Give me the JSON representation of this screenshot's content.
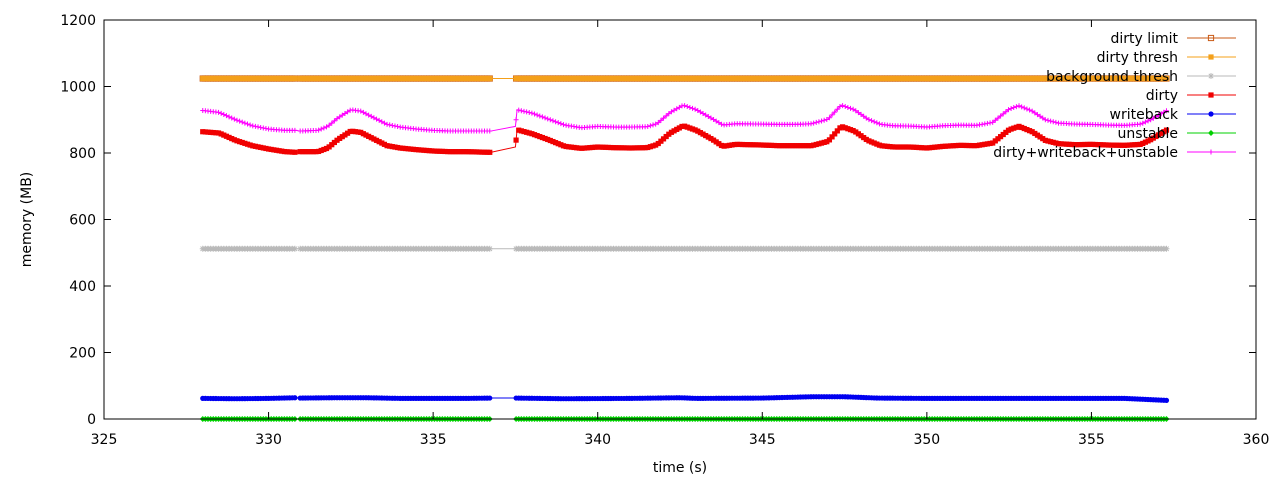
{
  "chart_data": {
    "type": "line",
    "title": "",
    "xlabel": "time (s)",
    "ylabel": "memory (MB)",
    "xlim": [
      325,
      360
    ],
    "ylim": [
      0,
      1200
    ],
    "xticks": [
      325,
      330,
      335,
      340,
      345,
      350,
      355,
      360
    ],
    "yticks": [
      0,
      200,
      400,
      600,
      800,
      1000,
      1200
    ],
    "grid": false,
    "legend_position": "top-right",
    "segments": [
      [
        328.0,
        330.85
      ],
      [
        330.95,
        336.75
      ],
      [
        337.5,
        357.3
      ]
    ],
    "series": [
      {
        "name": "dirty limit",
        "color": "#c85a14",
        "marker": "open-square",
        "points": [
          [
            328.0,
            1024
          ],
          [
            357.3,
            1024
          ]
        ]
      },
      {
        "name": "dirty thresh",
        "color": "#f4a01a",
        "marker": "square",
        "points": [
          [
            328.0,
            1024
          ],
          [
            357.3,
            1024
          ]
        ]
      },
      {
        "name": "background thresh",
        "color": "#b9b9b9",
        "marker": "star",
        "points": [
          [
            328.0,
            512
          ],
          [
            357.3,
            512
          ]
        ]
      },
      {
        "name": "dirty",
        "color": "#f00000",
        "marker": "filled-square",
        "points": [
          [
            328.0,
            864
          ],
          [
            328.5,
            860
          ],
          [
            329.0,
            838
          ],
          [
            329.5,
            822
          ],
          [
            330.0,
            812
          ],
          [
            330.5,
            804
          ],
          [
            330.85,
            802
          ],
          [
            330.95,
            804
          ],
          [
            331.5,
            804
          ],
          [
            331.8,
            815
          ],
          [
            332.1,
            840
          ],
          [
            332.5,
            866
          ],
          [
            332.8,
            862
          ],
          [
            333.2,
            842
          ],
          [
            333.6,
            822
          ],
          [
            334.0,
            815
          ],
          [
            334.5,
            810
          ],
          [
            335.0,
            806
          ],
          [
            335.5,
            804
          ],
          [
            336.0,
            804
          ],
          [
            336.75,
            802
          ],
          [
            337.5,
            818
          ],
          [
            337.55,
            870
          ],
          [
            338.0,
            858
          ],
          [
            338.5,
            840
          ],
          [
            339.0,
            820
          ],
          [
            339.5,
            814
          ],
          [
            340.0,
            818
          ],
          [
            340.5,
            816
          ],
          [
            341.0,
            815
          ],
          [
            341.5,
            816
          ],
          [
            341.8,
            825
          ],
          [
            342.2,
            860
          ],
          [
            342.6,
            882
          ],
          [
            343.0,
            868
          ],
          [
            343.5,
            840
          ],
          [
            343.8,
            820
          ],
          [
            344.2,
            826
          ],
          [
            345.0,
            824
          ],
          [
            345.5,
            822
          ],
          [
            346.0,
            822
          ],
          [
            346.5,
            822
          ],
          [
            347.0,
            835
          ],
          [
            347.4,
            880
          ],
          [
            347.8,
            866
          ],
          [
            348.2,
            838
          ],
          [
            348.6,
            822
          ],
          [
            349.0,
            818
          ],
          [
            349.5,
            818
          ],
          [
            350.0,
            815
          ],
          [
            350.5,
            820
          ],
          [
            351.0,
            823
          ],
          [
            351.5,
            822
          ],
          [
            352.0,
            830
          ],
          [
            352.5,
            870
          ],
          [
            352.8,
            880
          ],
          [
            353.2,
            864
          ],
          [
            353.6,
            838
          ],
          [
            354.0,
            828
          ],
          [
            354.5,
            825
          ],
          [
            355.0,
            826
          ],
          [
            355.5,
            824
          ],
          [
            356.0,
            823
          ],
          [
            356.5,
            826
          ],
          [
            356.8,
            840
          ],
          [
            357.3,
            870
          ]
        ]
      },
      {
        "name": "writeback",
        "color": "#0000f0",
        "marker": "circle",
        "points": [
          [
            328.0,
            62
          ],
          [
            329.0,
            61
          ],
          [
            330.0,
            62
          ],
          [
            330.85,
            64
          ],
          [
            330.95,
            63
          ],
          [
            332.0,
            64
          ],
          [
            333.0,
            64
          ],
          [
            334.0,
            62
          ],
          [
            335.0,
            62
          ],
          [
            336.0,
            62
          ],
          [
            336.75,
            63
          ],
          [
            337.5,
            63
          ],
          [
            339.0,
            61
          ],
          [
            341.0,
            62
          ],
          [
            342.5,
            64
          ],
          [
            343.0,
            62
          ],
          [
            345.0,
            63
          ],
          [
            346.5,
            67
          ],
          [
            347.5,
            67
          ],
          [
            348.5,
            63
          ],
          [
            350.0,
            62
          ],
          [
            352.0,
            62
          ],
          [
            354.0,
            62
          ],
          [
            356.0,
            62
          ],
          [
            357.3,
            56
          ]
        ]
      },
      {
        "name": "unstable",
        "color": "#00d000",
        "marker": "diamond",
        "points": [
          [
            328.0,
            0
          ],
          [
            357.3,
            0
          ]
        ]
      },
      {
        "name": "dirty+writeback+unstable",
        "color": "#ff00ff",
        "marker": "plus",
        "points": [
          [
            328.0,
            928
          ],
          [
            328.5,
            922
          ],
          [
            329.0,
            900
          ],
          [
            329.5,
            882
          ],
          [
            330.0,
            872
          ],
          [
            330.5,
            868
          ],
          [
            330.85,
            868
          ],
          [
            330.95,
            866
          ],
          [
            331.5,
            868
          ],
          [
            331.8,
            880
          ],
          [
            332.1,
            905
          ],
          [
            332.5,
            930
          ],
          [
            332.8,
            926
          ],
          [
            333.2,
            906
          ],
          [
            333.6,
            886
          ],
          [
            334.0,
            878
          ],
          [
            334.5,
            872
          ],
          [
            335.0,
            868
          ],
          [
            335.5,
            866
          ],
          [
            336.0,
            866
          ],
          [
            336.75,
            866
          ],
          [
            337.5,
            880
          ],
          [
            337.55,
            930
          ],
          [
            338.0,
            920
          ],
          [
            338.5,
            902
          ],
          [
            339.0,
            884
          ],
          [
            339.5,
            876
          ],
          [
            340.0,
            880
          ],
          [
            340.5,
            878
          ],
          [
            341.0,
            878
          ],
          [
            341.5,
            879
          ],
          [
            341.8,
            888
          ],
          [
            342.2,
            922
          ],
          [
            342.6,
            944
          ],
          [
            343.0,
            930
          ],
          [
            343.5,
            902
          ],
          [
            343.8,
            884
          ],
          [
            344.2,
            888
          ],
          [
            345.0,
            887
          ],
          [
            345.5,
            886
          ],
          [
            346.0,
            886
          ],
          [
            346.5,
            888
          ],
          [
            347.0,
            902
          ],
          [
            347.4,
            944
          ],
          [
            347.8,
            930
          ],
          [
            348.2,
            902
          ],
          [
            348.6,
            886
          ],
          [
            349.0,
            882
          ],
          [
            349.5,
            881
          ],
          [
            350.0,
            878
          ],
          [
            350.5,
            882
          ],
          [
            351.0,
            884
          ],
          [
            351.5,
            883
          ],
          [
            352.0,
            892
          ],
          [
            352.5,
            932
          ],
          [
            352.8,
            942
          ],
          [
            353.2,
            926
          ],
          [
            353.6,
            900
          ],
          [
            354.0,
            890
          ],
          [
            354.5,
            887
          ],
          [
            355.0,
            886
          ],
          [
            355.5,
            884
          ],
          [
            356.0,
            883
          ],
          [
            356.5,
            887
          ],
          [
            356.8,
            900
          ],
          [
            357.3,
            928
          ]
        ]
      }
    ]
  }
}
